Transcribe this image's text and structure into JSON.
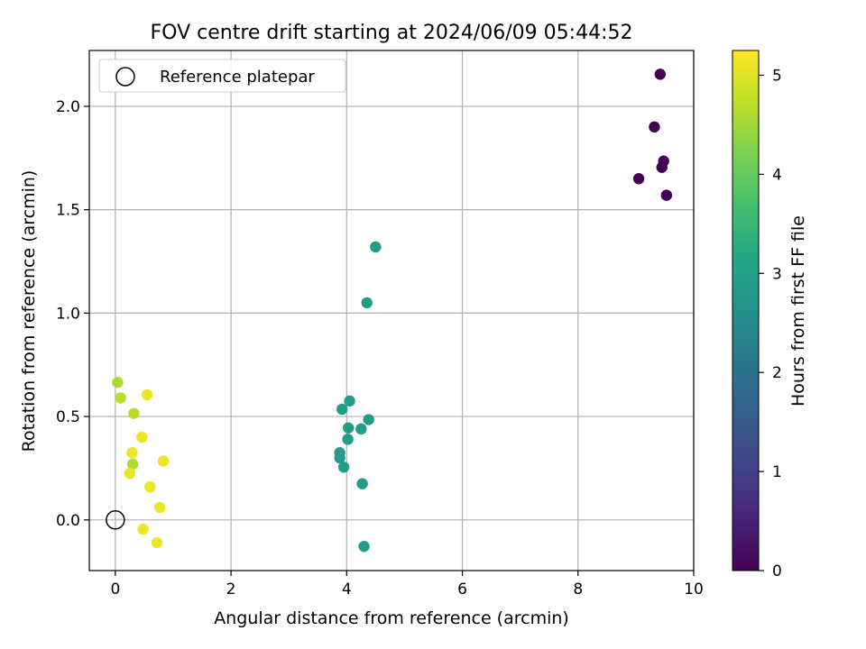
{
  "chart_data": {
    "type": "scatter",
    "title": "FOV centre drift starting at 2024/06/09 05:44:52",
    "xlabel": "Angular distance from reference (arcmin)",
    "ylabel": "Rotation from reference (arcmin)",
    "xlim": [
      -0.45,
      10.0
    ],
    "ylim": [
      -0.245,
      2.27
    ],
    "xticks": [
      0,
      2,
      4,
      6,
      8,
      10
    ],
    "yticks": [
      0.0,
      0.5,
      1.0,
      1.5,
      2.0
    ],
    "grid": true,
    "legend": {
      "location": "top-left",
      "entries": [
        "Reference platepar"
      ]
    },
    "reference_point": {
      "x": 0.0,
      "y": 0.0,
      "marker": "open-circle",
      "label": "Reference platepar"
    },
    "colorbar": {
      "label": "Hours from first FF file",
      "colormap": "viridis",
      "range": [
        0,
        5.25
      ],
      "ticks": [
        0,
        1,
        2,
        3,
        4,
        5
      ]
    },
    "points": [
      {
        "x": 9.42,
        "y": 2.155,
        "hours": 0.0
      },
      {
        "x": 9.32,
        "y": 1.9,
        "hours": 0.0
      },
      {
        "x": 9.48,
        "y": 1.735,
        "hours": 0.0
      },
      {
        "x": 9.45,
        "y": 1.705,
        "hours": 0.0
      },
      {
        "x": 9.05,
        "y": 1.65,
        "hours": 0.0
      },
      {
        "x": 9.53,
        "y": 1.57,
        "hours": 0.0
      },
      {
        "x": 4.5,
        "y": 1.32,
        "hours": 2.9
      },
      {
        "x": 4.35,
        "y": 1.05,
        "hours": 2.9
      },
      {
        "x": 4.05,
        "y": 0.575,
        "hours": 2.9
      },
      {
        "x": 3.92,
        "y": 0.535,
        "hours": 2.9
      },
      {
        "x": 4.38,
        "y": 0.485,
        "hours": 2.9
      },
      {
        "x": 4.03,
        "y": 0.445,
        "hours": 2.9
      },
      {
        "x": 4.25,
        "y": 0.44,
        "hours": 2.9
      },
      {
        "x": 4.02,
        "y": 0.39,
        "hours": 2.9
      },
      {
        "x": 3.88,
        "y": 0.325,
        "hours": 2.9
      },
      {
        "x": 3.88,
        "y": 0.3,
        "hours": 2.9
      },
      {
        "x": 3.95,
        "y": 0.255,
        "hours": 2.9
      },
      {
        "x": 4.27,
        "y": 0.175,
        "hours": 2.9
      },
      {
        "x": 4.3,
        "y": -0.128,
        "hours": 2.9
      },
      {
        "x": 0.04,
        "y": 0.665,
        "hours": 4.6
      },
      {
        "x": 0.55,
        "y": 0.605,
        "hours": 5.1
      },
      {
        "x": 0.09,
        "y": 0.59,
        "hours": 4.7
      },
      {
        "x": 0.32,
        "y": 0.515,
        "hours": 4.7
      },
      {
        "x": 0.46,
        "y": 0.4,
        "hours": 5.1
      },
      {
        "x": 0.29,
        "y": 0.325,
        "hours": 5.1
      },
      {
        "x": 0.83,
        "y": 0.285,
        "hours": 5.1
      },
      {
        "x": 0.3,
        "y": 0.27,
        "hours": 4.6
      },
      {
        "x": 0.25,
        "y": 0.225,
        "hours": 5.1
      },
      {
        "x": 0.6,
        "y": 0.16,
        "hours": 5.1
      },
      {
        "x": 0.77,
        "y": 0.06,
        "hours": 5.1
      },
      {
        "x": 0.48,
        "y": -0.045,
        "hours": 5.1
      },
      {
        "x": 0.72,
        "y": -0.11,
        "hours": 5.1
      }
    ]
  }
}
